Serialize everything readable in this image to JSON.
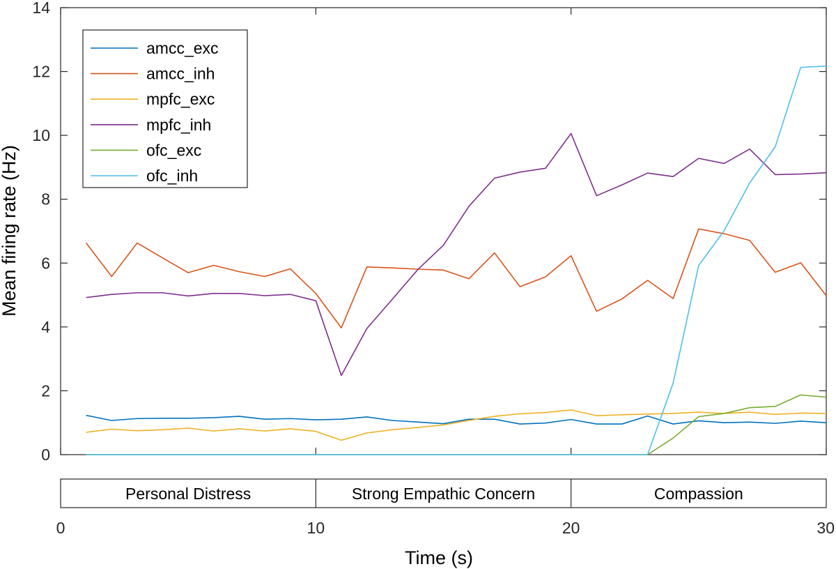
{
  "chart_data": {
    "type": "line",
    "ylabel": "Mean firing rate (Hz)",
    "xlabel": "Time (s)",
    "ylim": [
      0,
      14
    ],
    "xlim": [
      0,
      30
    ],
    "yticks": [
      0,
      2,
      4,
      6,
      8,
      10,
      12,
      14
    ],
    "xticks": [
      0,
      10,
      20,
      30
    ],
    "grid": false,
    "legend_position": "top-left",
    "x": [
      1,
      2,
      3,
      4,
      5,
      6,
      7,
      8,
      9,
      10,
      11,
      12,
      13,
      14,
      15,
      16,
      17,
      18,
      19,
      20,
      21,
      22,
      23,
      24,
      25,
      26,
      27,
      28,
      29,
      30
    ],
    "series": [
      {
        "name": "amcc_exc",
        "color": "#0072BD",
        "values": [
          1.23,
          1.07,
          1.13,
          1.14,
          1.14,
          1.16,
          1.2,
          1.11,
          1.13,
          1.09,
          1.11,
          1.18,
          1.07,
          1.02,
          0.97,
          1.11,
          1.11,
          0.96,
          0.99,
          1.1,
          0.96,
          0.96,
          1.21,
          0.96,
          1.06,
          1.0,
          1.02,
          0.98,
          1.05,
          1.0
        ]
      },
      {
        "name": "amcc_inh",
        "color": "#D95319",
        "values": [
          6.63,
          5.58,
          6.63,
          6.16,
          5.7,
          5.93,
          5.73,
          5.58,
          5.82,
          5.05,
          3.97,
          5.88,
          5.85,
          5.81,
          5.78,
          5.51,
          6.32,
          5.26,
          5.57,
          6.23,
          4.49,
          4.88,
          5.46,
          4.89,
          7.07,
          6.92,
          6.71,
          5.71,
          6.01,
          4.98
        ]
      },
      {
        "name": "mpfc_exc",
        "color": "#EDB120",
        "values": [
          0.7,
          0.8,
          0.75,
          0.78,
          0.83,
          0.74,
          0.81,
          0.74,
          0.81,
          0.73,
          0.45,
          0.68,
          0.78,
          0.85,
          0.93,
          1.07,
          1.2,
          1.28,
          1.32,
          1.4,
          1.22,
          1.25,
          1.27,
          1.29,
          1.33,
          1.29,
          1.33,
          1.26,
          1.3,
          1.29
        ]
      },
      {
        "name": "mpfc_inh",
        "color": "#7E2F8E",
        "values": [
          4.92,
          5.02,
          5.07,
          5.07,
          4.97,
          5.05,
          5.05,
          4.98,
          5.02,
          4.82,
          2.48,
          3.95,
          4.87,
          5.8,
          6.56,
          7.78,
          8.66,
          8.85,
          8.97,
          10.06,
          8.11,
          8.45,
          8.82,
          8.71,
          9.28,
          9.12,
          9.57,
          8.77,
          8.79,
          8.83
        ]
      },
      {
        "name": "ofc_exc",
        "color": "#77AC30",
        "values": [
          0,
          0,
          0,
          0,
          0,
          0,
          0,
          0,
          0,
          0,
          0,
          0,
          0,
          0,
          0,
          0,
          0,
          0,
          0,
          0,
          0,
          0,
          0,
          0.52,
          1.19,
          1.29,
          1.47,
          1.51,
          1.87,
          1.8
        ]
      },
      {
        "name": "ofc_inh",
        "color": "#4DBEEE",
        "values": [
          0,
          0,
          0,
          0,
          0,
          0,
          0,
          0,
          0,
          0,
          0,
          0,
          0,
          0,
          0,
          0,
          0,
          0,
          0,
          0,
          0,
          0,
          0,
          2.24,
          5.92,
          7.02,
          8.51,
          9.64,
          12.13,
          12.17
        ]
      }
    ],
    "phases": [
      {
        "label": "Personal Distress",
        "start": 0,
        "end": 10
      },
      {
        "label": "Strong Empathic Concern",
        "start": 10,
        "end": 20
      },
      {
        "label": "Compassion",
        "start": 20,
        "end": 30
      }
    ]
  }
}
